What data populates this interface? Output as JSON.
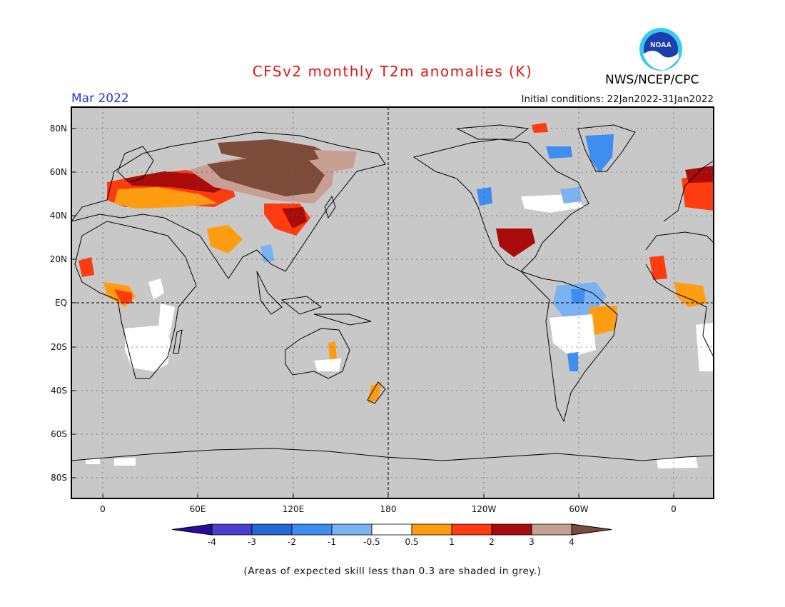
{
  "title": "CFSv2 monthly T2m anomalies (K)",
  "valid_month": "Mar 2022",
  "initial_conditions": "Initial conditions: 22Jan2022-31Jan2022",
  "organization": "NWS/NCEP/CPC",
  "logo_text": "NOAA",
  "lat_labels": [
    "80N",
    "60N",
    "40N",
    "20N",
    "EQ",
    "20S",
    "40S",
    "60S",
    "80S"
  ],
  "lon_labels": [
    "0",
    "60E",
    "120E",
    "180",
    "120W",
    "60W",
    "0"
  ],
  "colorbar": {
    "tick_labels": [
      "-4",
      "-3",
      "-2",
      "-1",
      "-0.5",
      "0.5",
      "1",
      "2",
      "3",
      "4"
    ],
    "colors": [
      "#2a0a9a",
      "#4a3fd0",
      "#2668d6",
      "#3d8ef0",
      "#7bb3f2",
      "#ffffff",
      "#ff9d12",
      "#ff3b10",
      "#a90a0a",
      "#c8a093",
      "#7d4b3a"
    ]
  },
  "colors": {
    "ocean_mask": "#c8c8c8",
    "title": "#e01515",
    "month": "#2233dd"
  },
  "footer": "(Areas of expected skill less than 0.3 are shaded in grey.)"
}
